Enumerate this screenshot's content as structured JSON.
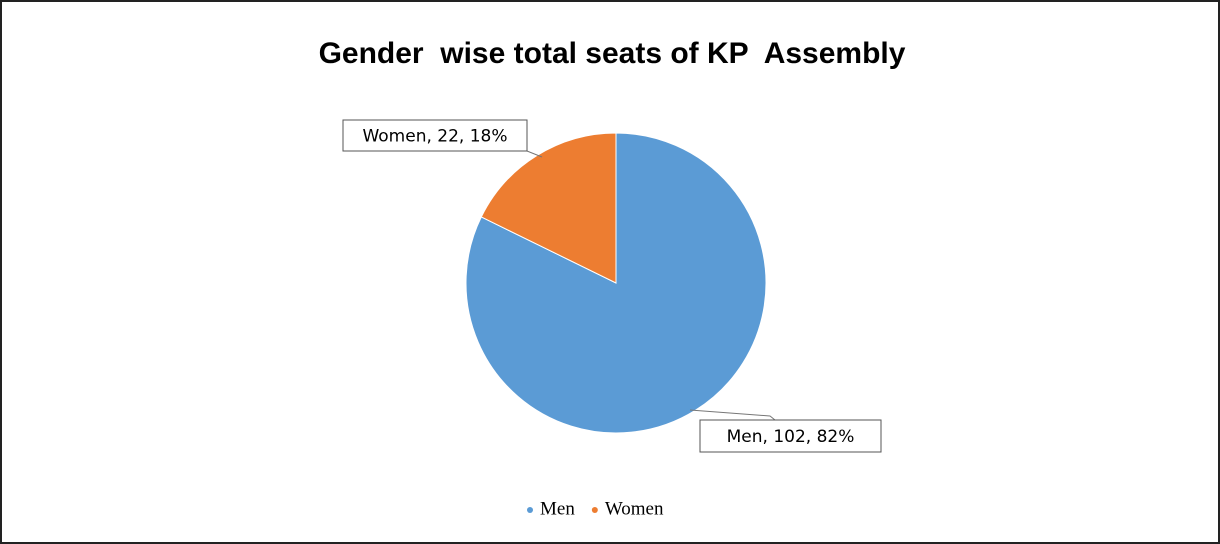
{
  "chart_data": {
    "type": "pie",
    "title": "Gender  wise total seats of KP  Assembly",
    "categories": [
      "Men",
      "Women"
    ],
    "values": [
      102,
      22
    ],
    "value_labels": [
      "Men, 102, 82%",
      "Women, 22, 18%"
    ],
    "colors": [
      "#5b9bd5",
      "#ed7d31"
    ],
    "legend": "bottom"
  }
}
